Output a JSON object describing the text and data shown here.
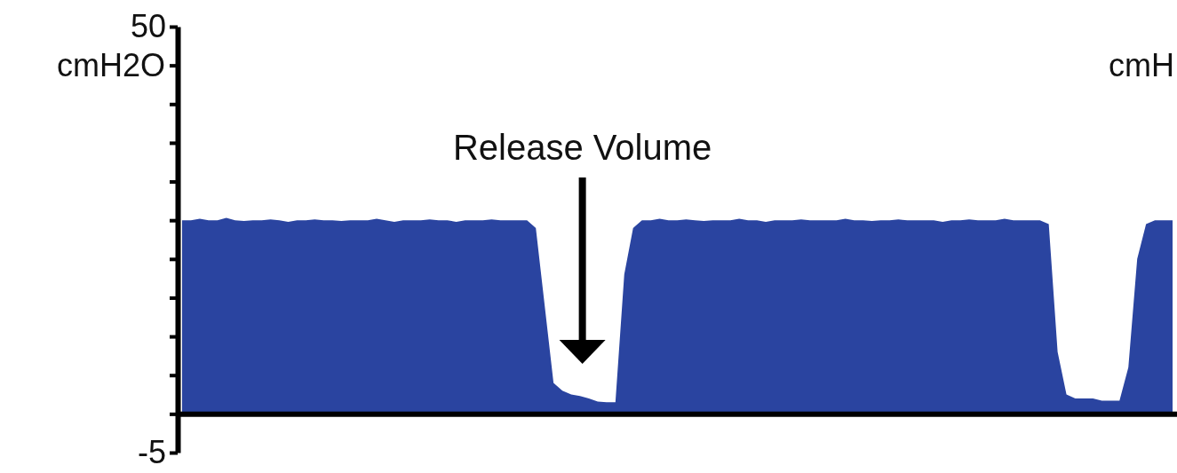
{
  "chart_data": {
    "type": "area",
    "ylabel": "cmH2O",
    "categories": [
      null,
      null,
      null,
      null,
      null,
      null,
      null,
      null,
      null,
      null,
      null,
      null,
      null,
      null,
      null,
      null,
      null,
      null,
      null,
      null,
      null,
      null,
      null,
      null,
      null,
      null,
      null,
      null,
      null,
      null,
      null,
      null,
      null,
      null,
      null,
      null,
      null,
      null,
      null,
      null,
      null,
      null,
      null,
      null,
      null,
      null,
      null,
      null,
      null,
      null,
      null,
      null,
      null,
      null,
      null,
      null,
      null,
      null,
      null,
      null,
      null,
      null,
      null,
      null,
      null,
      null,
      null,
      null,
      null,
      null,
      null,
      null,
      null,
      null,
      null,
      null,
      null,
      null,
      null,
      null,
      null,
      null,
      null,
      null,
      null,
      null,
      null,
      null,
      null,
      null,
      null,
      null,
      null,
      null,
      null,
      null,
      null,
      null,
      null,
      null,
      null,
      null,
      null,
      null,
      null,
      null,
      null,
      null,
      null,
      null,
      null,
      null,
      null
    ],
    "series": [
      {
        "color": "#2a44a0",
        "values": [
          25,
          25,
          25.2,
          25,
          25,
          25.3,
          25,
          24.9,
          25,
          25,
          25.1,
          25,
          24.8,
          25,
          25,
          25.1,
          25,
          25,
          24.9,
          25,
          25,
          25,
          25.2,
          25,
          24.8,
          25,
          25,
          25,
          25.1,
          25,
          25,
          24.8,
          25,
          25,
          25,
          25.1,
          25,
          25,
          25,
          25,
          24,
          14,
          4,
          3,
          2.5,
          2.3,
          2,
          1.6,
          1.5,
          1.5,
          18,
          24,
          25,
          25,
          25.2,
          25,
          25,
          25.1,
          25,
          24.9,
          25,
          25,
          25,
          25.2,
          25,
          25,
          24.8,
          25,
          25,
          25,
          25.1,
          25,
          25,
          25,
          25,
          25.2,
          25,
          25,
          24.9,
          25,
          25,
          25.1,
          25,
          25,
          25,
          25,
          24.8,
          25,
          25,
          25.1,
          25,
          25,
          25,
          25.2,
          25,
          25,
          25,
          25,
          24.5,
          8,
          2.5,
          2,
          2,
          2,
          1.7,
          1.7,
          1.7,
          6,
          20,
          24.5,
          25,
          25,
          25
        ]
      }
    ],
    "ylim": [
      -5,
      50
    ],
    "yticks": [
      {
        "value": -5,
        "label": "-5"
      },
      {
        "value": 0,
        "label": null
      },
      {
        "value": 5,
        "label": null
      },
      {
        "value": 10,
        "label": null
      },
      {
        "value": 15,
        "label": null
      },
      {
        "value": 20,
        "label": null
      },
      {
        "value": 25,
        "label": null
      },
      {
        "value": 30,
        "label": null
      },
      {
        "value": 35,
        "label": null
      },
      {
        "value": 40,
        "label": null
      },
      {
        "value": 45,
        "label": null
      },
      {
        "value": 50,
        "label": "50"
      }
    ],
    "annotations": [
      "Release Volume",
      "cmH"
    ]
  }
}
